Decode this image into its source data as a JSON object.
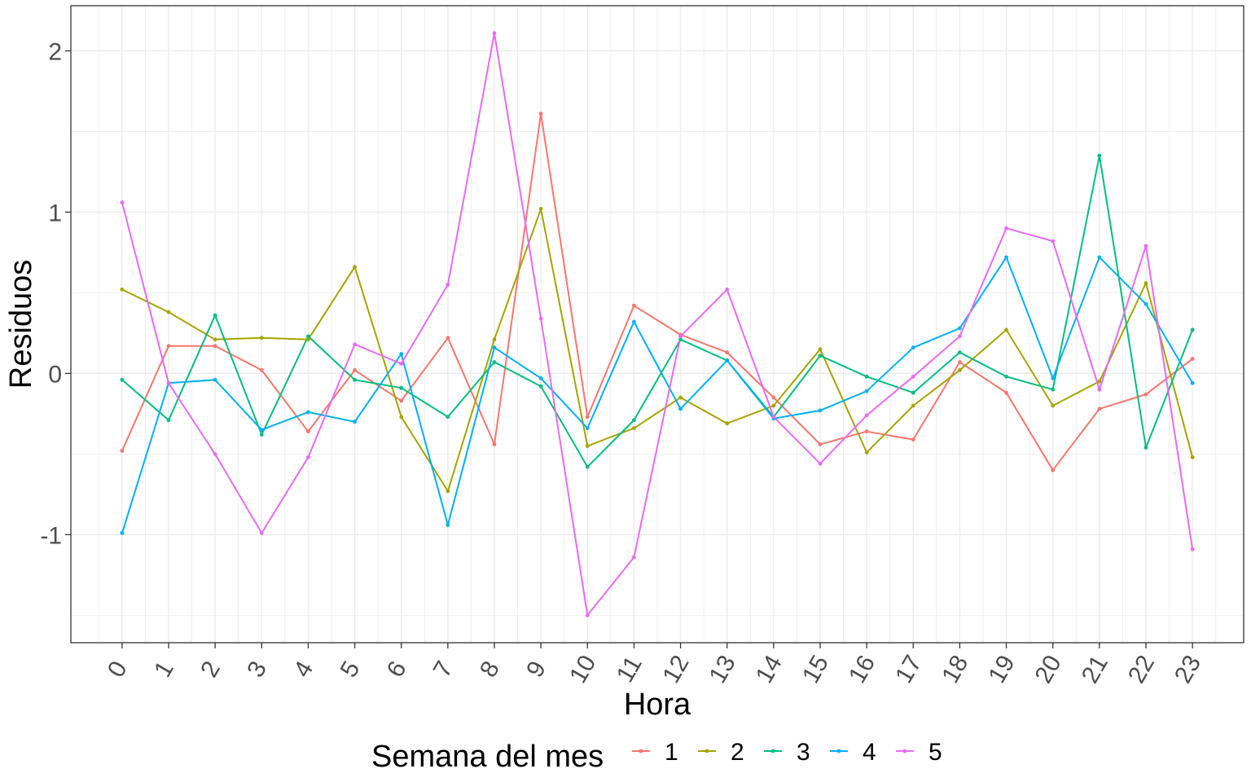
{
  "chart_data": {
    "type": "line",
    "xlabel": "Hora",
    "ylabel": "Residuos",
    "x": [
      0,
      1,
      2,
      3,
      4,
      5,
      6,
      7,
      8,
      9,
      10,
      11,
      12,
      13,
      14,
      15,
      16,
      17,
      18,
      19,
      20,
      21,
      22,
      23
    ],
    "x_tick_labels": [
      "0",
      "1",
      "2",
      "3",
      "4",
      "5",
      "6",
      "7",
      "8",
      "9",
      "10",
      "11",
      "12",
      "13",
      "14",
      "15",
      "16",
      "17",
      "18",
      "19",
      "20",
      "21",
      "22",
      "23"
    ],
    "y_ticks": [
      -1,
      0,
      1,
      2
    ],
    "y_tick_labels": [
      "-1",
      "0",
      "1",
      "2"
    ],
    "ylim": [
      -1.67,
      2.28
    ],
    "xlim": [
      -1.1,
      24.1
    ],
    "grid": true,
    "legend": {
      "title": "Semana del mes",
      "position": "bottom"
    },
    "series": [
      {
        "name": "1",
        "color": "#F8766D",
        "values": [
          -0.48,
          0.17,
          0.17,
          0.02,
          -0.36,
          0.02,
          -0.17,
          0.22,
          -0.44,
          1.61,
          -0.27,
          0.42,
          0.24,
          0.13,
          -0.15,
          -0.44,
          -0.36,
          -0.41,
          0.07,
          -0.12,
          -0.6,
          -0.22,
          -0.13,
          0.09
        ]
      },
      {
        "name": "2",
        "color": "#A3A500",
        "values": [
          0.52,
          0.38,
          0.21,
          0.22,
          0.21,
          0.66,
          -0.27,
          -0.73,
          0.21,
          1.02,
          -0.45,
          -0.34,
          -0.15,
          -0.31,
          -0.2,
          0.15,
          -0.49,
          -0.2,
          0.02,
          0.27,
          -0.2,
          -0.05,
          0.56,
          -0.52
        ]
      },
      {
        "name": "3",
        "color": "#00BF7D",
        "values": [
          -0.04,
          -0.29,
          0.36,
          -0.38,
          0.23,
          -0.04,
          -0.09,
          -0.27,
          0.07,
          -0.08,
          -0.58,
          -0.29,
          0.21,
          0.08,
          -0.27,
          0.11,
          -0.02,
          -0.12,
          0.13,
          -0.02,
          -0.1,
          1.35,
          -0.46,
          0.27
        ]
      },
      {
        "name": "4",
        "color": "#00B0F6",
        "values": [
          -0.99,
          -0.06,
          -0.04,
          -0.35,
          -0.24,
          -0.3,
          0.12,
          -0.94,
          0.16,
          -0.03,
          -0.34,
          0.32,
          -0.22,
          0.08,
          -0.28,
          -0.23,
          -0.11,
          0.16,
          0.28,
          0.72,
          -0.03,
          0.72,
          0.43,
          -0.06
        ]
      },
      {
        "name": "5",
        "color": "#E76BF3",
        "values": [
          1.06,
          -0.06,
          -0.5,
          -0.99,
          -0.52,
          0.18,
          0.06,
          0.55,
          2.11,
          0.34,
          -1.5,
          -1.14,
          0.23,
          0.52,
          -0.27,
          -0.56,
          -0.26,
          -0.02,
          0.23,
          0.9,
          0.82,
          -0.1,
          0.79,
          -1.09
        ]
      }
    ]
  }
}
